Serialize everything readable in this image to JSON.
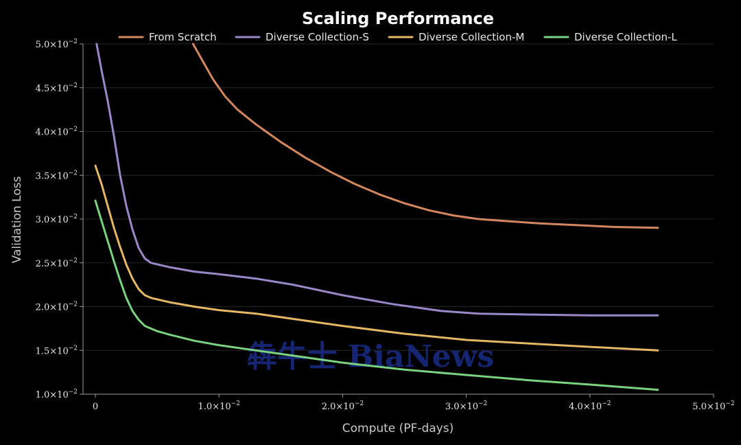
{
  "chart_data": {
    "type": "line",
    "title": "Scaling Performance",
    "xlabel": "Compute (PF-days)",
    "ylabel": "Validation Loss",
    "xlim": [
      -0.001,
      0.05
    ],
    "ylim": [
      0.01,
      0.05
    ],
    "x_ticks": [
      {
        "value": 0,
        "label": "0"
      },
      {
        "value": 0.01,
        "mantissa": "1.0",
        "base": "×10",
        "exp": "−2"
      },
      {
        "value": 0.02,
        "mantissa": "2.0",
        "base": "×10",
        "exp": "−2"
      },
      {
        "value": 0.03,
        "mantissa": "3.0",
        "base": "×10",
        "exp": "−2"
      },
      {
        "value": 0.04,
        "mantissa": "4.0",
        "base": "×10",
        "exp": "−2"
      },
      {
        "value": 0.05,
        "mantissa": "5.0",
        "base": "×10",
        "exp": "−2"
      }
    ],
    "y_ticks": [
      {
        "value": 0.01,
        "mantissa": "1.0",
        "base": "×10",
        "exp": "−2"
      },
      {
        "value": 0.015,
        "mantissa": "1.5",
        "base": "×10",
        "exp": "−2"
      },
      {
        "value": 0.02,
        "mantissa": "2.0",
        "base": "×10",
        "exp": "−2"
      },
      {
        "value": 0.025,
        "mantissa": "2.5",
        "base": "×10",
        "exp": "−2"
      },
      {
        "value": 0.03,
        "mantissa": "3.0",
        "base": "×10",
        "exp": "−2"
      },
      {
        "value": 0.035,
        "mantissa": "3.5",
        "base": "×10",
        "exp": "−2"
      },
      {
        "value": 0.04,
        "mantissa": "4.0",
        "base": "×10",
        "exp": "−2"
      },
      {
        "value": 0.045,
        "mantissa": "4.5",
        "base": "×10",
        "exp": "−2"
      },
      {
        "value": 0.05,
        "mantissa": "5.0",
        "base": "×10",
        "exp": "−2"
      }
    ],
    "grid": "horizontal",
    "legend_position": "top-center",
    "series": [
      {
        "name": "From Scratch",
        "color": "#d4875f",
        "points": [
          [
            0.0079,
            0.05
          ],
          [
            0.0085,
            0.0485
          ],
          [
            0.0095,
            0.046
          ],
          [
            0.0105,
            0.044
          ],
          [
            0.0115,
            0.0425
          ],
          [
            0.013,
            0.0408
          ],
          [
            0.015,
            0.0388
          ],
          [
            0.017,
            0.037
          ],
          [
            0.019,
            0.0354
          ],
          [
            0.021,
            0.034
          ],
          [
            0.023,
            0.0328
          ],
          [
            0.025,
            0.0318
          ],
          [
            0.027,
            0.031
          ],
          [
            0.029,
            0.0304
          ],
          [
            0.031,
            0.03
          ],
          [
            0.033,
            0.0298
          ],
          [
            0.036,
            0.0295
          ],
          [
            0.039,
            0.0293
          ],
          [
            0.042,
            0.0291
          ],
          [
            0.0455,
            0.029
          ]
        ]
      },
      {
        "name": "Diverse Collection-S",
        "color": "#9b87c9",
        "points": [
          [
            0.0001,
            0.05
          ],
          [
            0.0005,
            0.047
          ],
          [
            0.001,
            0.0435
          ],
          [
            0.0015,
            0.0395
          ],
          [
            0.002,
            0.035
          ],
          [
            0.0025,
            0.0315
          ],
          [
            0.003,
            0.0288
          ],
          [
            0.0035,
            0.0267
          ],
          [
            0.004,
            0.0255
          ],
          [
            0.0045,
            0.025
          ],
          [
            0.006,
            0.0245
          ],
          [
            0.008,
            0.024
          ],
          [
            0.01,
            0.0237
          ],
          [
            0.013,
            0.0232
          ],
          [
            0.016,
            0.0225
          ],
          [
            0.02,
            0.0213
          ],
          [
            0.024,
            0.0203
          ],
          [
            0.028,
            0.0195
          ],
          [
            0.031,
            0.0192
          ],
          [
            0.035,
            0.0191
          ],
          [
            0.04,
            0.019
          ],
          [
            0.0455,
            0.019
          ]
        ]
      },
      {
        "name": "Diverse Collection-M",
        "color": "#e6b764",
        "points": [
          [
            0.0,
            0.0361
          ],
          [
            0.0005,
            0.034
          ],
          [
            0.001,
            0.0315
          ],
          [
            0.0015,
            0.029
          ],
          [
            0.002,
            0.0268
          ],
          [
            0.0025,
            0.0248
          ],
          [
            0.003,
            0.0232
          ],
          [
            0.0035,
            0.022
          ],
          [
            0.004,
            0.0213
          ],
          [
            0.0045,
            0.021
          ],
          [
            0.006,
            0.0205
          ],
          [
            0.008,
            0.02
          ],
          [
            0.01,
            0.0196
          ],
          [
            0.013,
            0.0192
          ],
          [
            0.016,
            0.0186
          ],
          [
            0.02,
            0.0178
          ],
          [
            0.025,
            0.0169
          ],
          [
            0.03,
            0.0162
          ],
          [
            0.035,
            0.0158
          ],
          [
            0.04,
            0.0154
          ],
          [
            0.0455,
            0.015
          ]
        ]
      },
      {
        "name": "Diverse Collection-L",
        "color": "#79d37f",
        "points": [
          [
            0.0,
            0.0321
          ],
          [
            0.0005,
            0.0298
          ],
          [
            0.001,
            0.0275
          ],
          [
            0.0015,
            0.0252
          ],
          [
            0.002,
            0.023
          ],
          [
            0.0025,
            0.021
          ],
          [
            0.003,
            0.0195
          ],
          [
            0.0035,
            0.0185
          ],
          [
            0.004,
            0.0178
          ],
          [
            0.005,
            0.0172
          ],
          [
            0.006,
            0.0168
          ],
          [
            0.008,
            0.0161
          ],
          [
            0.01,
            0.0156
          ],
          [
            0.013,
            0.015
          ],
          [
            0.016,
            0.0144
          ],
          [
            0.02,
            0.0136
          ],
          [
            0.025,
            0.0128
          ],
          [
            0.03,
            0.0122
          ],
          [
            0.035,
            0.0116
          ],
          [
            0.04,
            0.0111
          ],
          [
            0.0455,
            0.0105
          ]
        ]
      }
    ]
  },
  "watermark": {
    "text": "犇牛士 BiaNews",
    "color": "#1b2f8f"
  }
}
